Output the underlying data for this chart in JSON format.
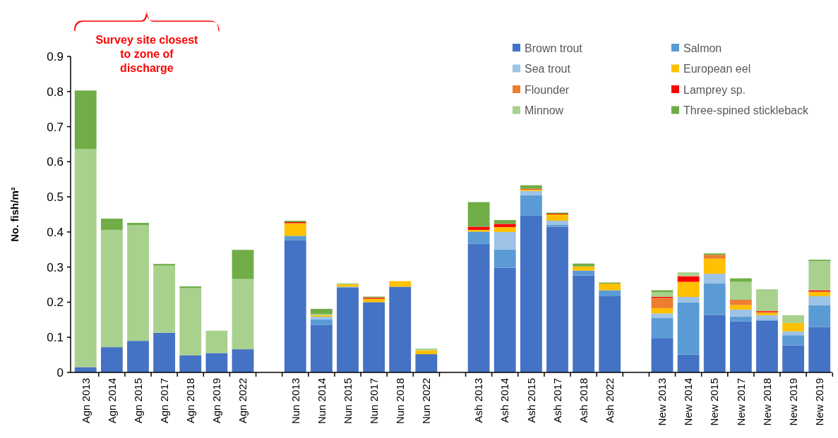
{
  "chart_data": {
    "type": "bar",
    "stacked": true,
    "ylabel": "No. fish/m²",
    "annotations": [
      "Survey site closest to zone of discharge"
    ],
    "categories": [
      "Agn 2013",
      "Agn 2014",
      "Agn 2015",
      "Agn 2017",
      "Agn 2018",
      "Agn 2019",
      "Agn 2022",
      null,
      "Nun 2013",
      "Nun 2014",
      "Nun 2015",
      "Nun 2017",
      "Nun 2018",
      "Nun 2022",
      null,
      "Ash 2013",
      "Ash 2014",
      "Ash 2015",
      "Ash 2017",
      "Ash 2018",
      "Ash 2022",
      null,
      "New 2013",
      "New 2014",
      "New 2015",
      "New 2017",
      "New 2018",
      "New 2019",
      "New 2019"
    ],
    "ylim": [
      0,
      0.9
    ],
    "yticks": [
      {
        "value": 0,
        "label": "0"
      },
      0.1,
      0.2,
      0.3,
      0.4,
      0.5,
      0.6,
      0.7,
      0.8,
      0.9
    ],
    "grid": false,
    "legend": "top right",
    "series": [
      {
        "name": "Brown trout",
        "color": "#4472c4",
        "values": [
          0.015,
          0.072,
          0.09,
          0.113,
          0.049,
          0.055,
          0.066,
          null,
          0.377,
          0.136,
          0.242,
          0.2,
          0.244,
          0.052,
          null,
          0.366,
          0.298,
          0.446,
          0.415,
          0.276,
          0.217,
          null,
          0.098,
          0.051,
          0.164,
          0.145,
          0.147,
          0.077,
          0.129
        ]
      },
      {
        "name": "Salmon",
        "color": "#5b9bd5",
        "values": [
          null,
          null,
          null,
          null,
          null,
          null,
          null,
          null,
          0.012,
          0.015,
          0.002,
          null,
          null,
          null,
          null,
          0.035,
          0.052,
          0.059,
          0.005,
          0.014,
          0.017,
          null,
          0.057,
          0.148,
          0.089,
          0.014,
          0.003,
          0.029,
          0.062
        ]
      },
      {
        "name": "Sea trout",
        "color": "#9dc3e6",
        "values": [
          null,
          null,
          null,
          null,
          null,
          null,
          null,
          null,
          null,
          0.008,
          null,
          null,
          null,
          null,
          null,
          null,
          0.05,
          0.012,
          0.012,
          null,
          null,
          null,
          0.013,
          0.016,
          0.028,
          0.02,
          0.013,
          0.011,
          0.026
        ]
      },
      {
        "name": "European eel",
        "color": "#ffc000",
        "values": [
          null,
          null,
          null,
          null,
          null,
          null,
          null,
          null,
          0.036,
          0.004,
          0.007,
          0.01,
          0.016,
          0.011,
          null,
          0.005,
          0.014,
          0.004,
          0.018,
          0.012,
          0.019,
          null,
          0.015,
          0.043,
          0.043,
          0.013,
          0.006,
          0.024,
          0.013
        ]
      },
      {
        "name": "Flounder",
        "color": "#ed7d31",
        "values": [
          null,
          null,
          null,
          null,
          null,
          null,
          null,
          null,
          null,
          null,
          null,
          null,
          null,
          null,
          null,
          null,
          null,
          null,
          null,
          null,
          null,
          null,
          0.029,
          null,
          0.011,
          0.015,
          0.004,
          null,
          null
        ]
      },
      {
        "name": "Lamprey sp.",
        "color": "#ff0000",
        "values": [
          null,
          null,
          null,
          null,
          null,
          null,
          null,
          null,
          0.003,
          null,
          null,
          0.003,
          null,
          null,
          null,
          0.009,
          0.009,
          0.002,
          0.002,
          null,
          null,
          null,
          0.003,
          0.016,
          null,
          null,
          0.002,
          null,
          0.004
        ]
      },
      {
        "name": "Minnow",
        "color": "#a9d18e",
        "values": [
          0.621,
          0.334,
          0.329,
          0.191,
          0.191,
          0.064,
          0.2,
          null,
          null,
          0.003,
          0.003,
          0.004,
          null,
          0.005,
          null,
          null,
          null,
          null,
          null,
          null,
          null,
          null,
          0.013,
          0.011,
          null,
          0.051,
          0.059,
          0.022,
          0.083
        ]
      },
      {
        "name": "Three-spined stickleback",
        "color": "#70ad47",
        "values": [
          0.167,
          0.032,
          0.007,
          0.005,
          0.005,
          null,
          0.083,
          null,
          0.004,
          0.015,
          null,
          null,
          null,
          null,
          null,
          0.07,
          0.011,
          0.01,
          0.003,
          0.008,
          0.003,
          null,
          0.006,
          null,
          0.004,
          0.01,
          0.002,
          null,
          0.004
        ]
      }
    ]
  }
}
